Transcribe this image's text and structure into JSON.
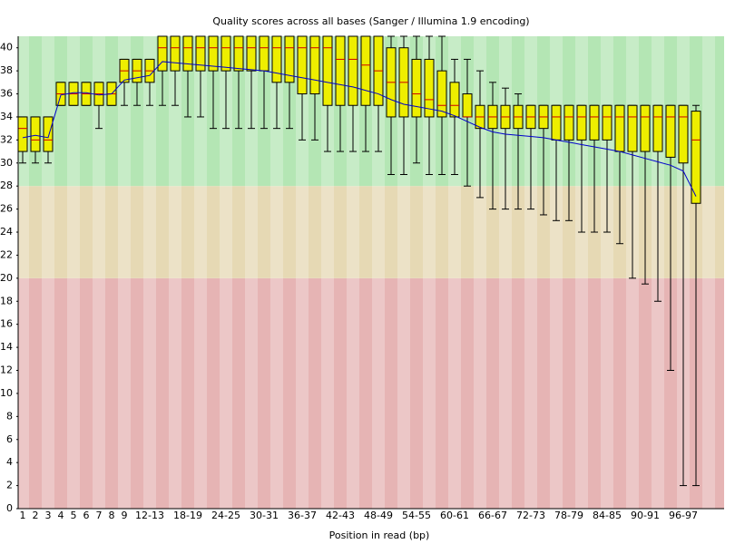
{
  "chart_data": {
    "type": "box",
    "title": "Quality scores across all bases (Sanger / Illumina 1.9 encoding)",
    "x_label": "Position in read (bp)",
    "categories": [
      "1",
      "2",
      "3",
      "4",
      "5",
      "6",
      "7",
      "8",
      "9",
      null,
      "12-13",
      null,
      null,
      "18-19",
      null,
      null,
      "24-25",
      null,
      null,
      "30-31",
      null,
      null,
      "36-37",
      null,
      null,
      "42-43",
      null,
      null,
      "48-49",
      null,
      null,
      "54-55",
      null,
      null,
      "60-61",
      null,
      null,
      "66-67",
      null,
      null,
      "72-73",
      null,
      null,
      "78-79",
      null,
      null,
      "84-85",
      null,
      null,
      "90-91",
      null,
      null,
      "96-97",
      null
    ],
    "p10": [
      30,
      30,
      30,
      35,
      35,
      35,
      33,
      35,
      35,
      35,
      35,
      35,
      35,
      34,
      34,
      33,
      33,
      33,
      33,
      33,
      33,
      33,
      32,
      32,
      31,
      31,
      31,
      31,
      31,
      29,
      29,
      30,
      29,
      29,
      29,
      28,
      27,
      26,
      26,
      26,
      26,
      25.5,
      25,
      25,
      24,
      24,
      24,
      23,
      20,
      19.5,
      18,
      12,
      2,
      2
    ],
    "q1": [
      31,
      31,
      31,
      35,
      35,
      35,
      35,
      35,
      37,
      37,
      37,
      38,
      38,
      38,
      38,
      38,
      38,
      38,
      38,
      38,
      37,
      37,
      36,
      36,
      35,
      35,
      35,
      35,
      35,
      34,
      34,
      34,
      34,
      34,
      34,
      34,
      33,
      33,
      33,
      33,
      33,
      33,
      32,
      32,
      32,
      32,
      32,
      31,
      31,
      31,
      31,
      30.5,
      30,
      26.5
    ],
    "median": [
      33,
      32,
      32,
      36,
      36,
      36,
      36,
      36,
      38,
      38,
      38,
      40,
      40,
      40,
      40,
      40,
      40,
      40,
      40,
      40,
      40,
      40,
      40,
      40,
      40,
      39,
      39,
      38.5,
      38,
      37,
      37,
      36,
      35.5,
      35,
      35,
      34,
      34,
      34,
      34,
      34,
      34,
      34,
      34,
      34,
      34,
      34,
      34,
      34,
      34,
      34,
      34,
      34,
      34,
      32
    ],
    "q3": [
      34,
      34,
      34,
      37,
      37,
      37,
      37,
      37,
      39,
      39,
      39,
      41,
      41,
      41,
      41,
      41,
      41,
      41,
      41,
      41,
      41,
      41,
      41,
      41,
      41,
      41,
      41,
      41,
      41,
      40,
      40,
      39,
      39,
      38,
      37,
      36,
      35,
      35,
      35,
      35,
      35,
      35,
      35,
      35,
      35,
      35,
      35,
      35,
      35,
      35,
      35,
      35,
      35,
      34.5
    ],
    "p90": [
      34,
      34,
      34,
      37,
      37,
      37,
      37,
      37,
      39,
      39,
      39,
      41,
      41,
      41,
      41,
      41,
      41,
      41,
      41,
      41,
      41,
      41,
      41,
      41,
      41,
      41,
      41,
      41,
      41,
      41,
      41,
      41,
      41,
      41,
      39,
      39,
      38,
      37,
      36.5,
      36,
      35,
      35,
      35,
      35,
      35,
      35,
      35,
      35,
      35,
      35,
      35,
      35,
      35,
      35
    ],
    "mean": [
      32.2,
      32.4,
      32.2,
      35.9,
      36.1,
      36.1,
      35.9,
      36.0,
      37.2,
      37.4,
      37.6,
      38.8,
      38.7,
      38.6,
      38.5,
      38.4,
      38.3,
      38.2,
      38.1,
      38.0,
      37.8,
      37.6,
      37.4,
      37.2,
      37.0,
      36.8,
      36.6,
      36.3,
      36.0,
      35.5,
      35.1,
      34.9,
      34.7,
      34.5,
      34.1,
      33.6,
      33.1,
      32.7,
      32.5,
      32.4,
      32.3,
      32.2,
      32.0,
      31.8,
      31.6,
      31.4,
      31.2,
      31.0,
      30.7,
      30.4,
      30.1,
      29.8,
      29.3,
      27.1
    ],
    "box_color": "#eeee00",
    "median_color": "#cc0000",
    "mean_color": "#0000cc",
    "zones": [
      {
        "from": 0,
        "to": 20,
        "color": "#e6b4b4"
      },
      {
        "from": 20,
        "to": 28,
        "color": "#e6d9b4"
      },
      {
        "from": 28,
        "to": 41,
        "color": "#b4e6b4"
      }
    ],
    "ylim": [
      0,
      41
    ],
    "yticks": [
      0,
      2,
      4,
      6,
      8,
      10,
      12,
      14,
      16,
      18,
      20,
      22,
      24,
      26,
      28,
      30,
      32,
      34,
      36,
      38,
      40
    ]
  }
}
